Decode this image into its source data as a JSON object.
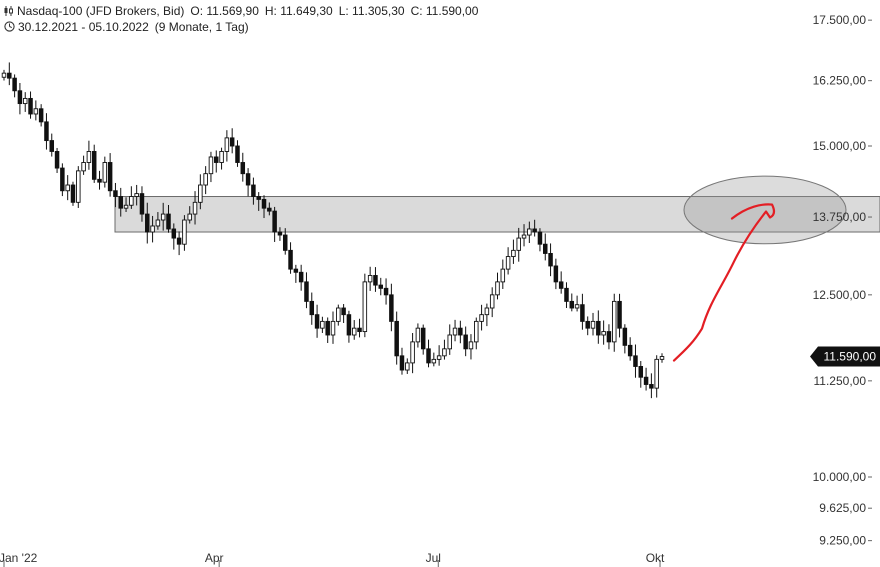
{
  "header": {
    "symbol": "Nasdaq-100 (JFD Brokers, Bid)",
    "open": "O: 11.569,90",
    "high": "H: 11.649,30",
    "low": "L: 11.305,30",
    "close": "C: 11.590,00",
    "date_range": "30.12.2021 - 05.10.2022",
    "period": "(9 Monate, 1 Tag)",
    "chart_icon": "candlestick-icon",
    "clock_icon": "clock-icon"
  },
  "price_badge": {
    "label": "11.590,00",
    "value": 11590,
    "color": "#111111"
  },
  "colors": {
    "candle": "#111111",
    "zone": "#d6d6d6",
    "annotation": "#e31e24"
  },
  "chart_data": {
    "type": "line",
    "title": "",
    "yscale": "log",
    "ylim": [
      9150,
      17750
    ],
    "yticks": [
      {
        "value": 17500,
        "label": "17.500,00"
      },
      {
        "value": 16250,
        "label": "16.250,00"
      },
      {
        "value": 15000,
        "label": "15.000,00"
      },
      {
        "value": 13750,
        "label": "13.750,00"
      },
      {
        "value": 12500,
        "label": "12.500,00"
      },
      {
        "value": 11250,
        "label": "11.250,00"
      },
      {
        "value": 10000,
        "label": "10.000,00"
      },
      {
        "value": 9625,
        "label": "9.625,00"
      },
      {
        "value": 9250,
        "label": "9.250,00"
      }
    ],
    "xticks": [
      {
        "label": "Jan '22",
        "t": 0.0
      },
      {
        "label": "Apr",
        "t": 0.327
      },
      {
        "label": "Jul",
        "t": 0.66
      },
      {
        "label": "Okt",
        "t": 0.997
      }
    ],
    "series": [
      {
        "close": [
          16400,
          16300,
          16050,
          15800,
          15900,
          15600,
          15700,
          15450,
          15100,
          14900,
          14600,
          14200,
          14300,
          14000,
          14550,
          14700,
          14900,
          14400,
          14350,
          14700,
          14200,
          14100,
          13900,
          13950,
          14100,
          14150,
          13800,
          13500,
          13600,
          13700,
          13800,
          13550,
          13400,
          13300,
          13700,
          13800,
          14000,
          14300,
          14500,
          14800,
          14700,
          14900,
          15150,
          15000,
          14700,
          14500,
          14300,
          14100,
          14050,
          13900,
          13850,
          13500,
          13450,
          13200,
          12900,
          12850,
          12700,
          12400,
          12200,
          12000,
          12100,
          11900,
          12100,
          12300,
          12200,
          11900,
          12000,
          11950,
          12700,
          12800,
          12650,
          12600,
          12500,
          12100,
          11600,
          11400,
          11500,
          11800,
          12000,
          11700,
          11500,
          11550,
          11600,
          11700,
          11900,
          12000,
          11900,
          11700,
          11800,
          12100,
          12200,
          12300,
          12500,
          12700,
          12900,
          13100,
          13200,
          13400,
          13450,
          13550,
          13500,
          13300,
          13150,
          12950,
          12700,
          12600,
          12400,
          12300,
          12350,
          12100,
          12000,
          12100,
          11900,
          11950,
          11800,
          12400,
          12000,
          11750,
          11600,
          11450,
          11300,
          11200,
          11150,
          11550,
          11590
        ]
      }
    ],
    "zone": {
      "from": 13500,
      "to": 14100
    },
    "target_ellipse": {
      "center_y": 13870,
      "y_top": 14450,
      "y_bottom": 13300
    }
  }
}
